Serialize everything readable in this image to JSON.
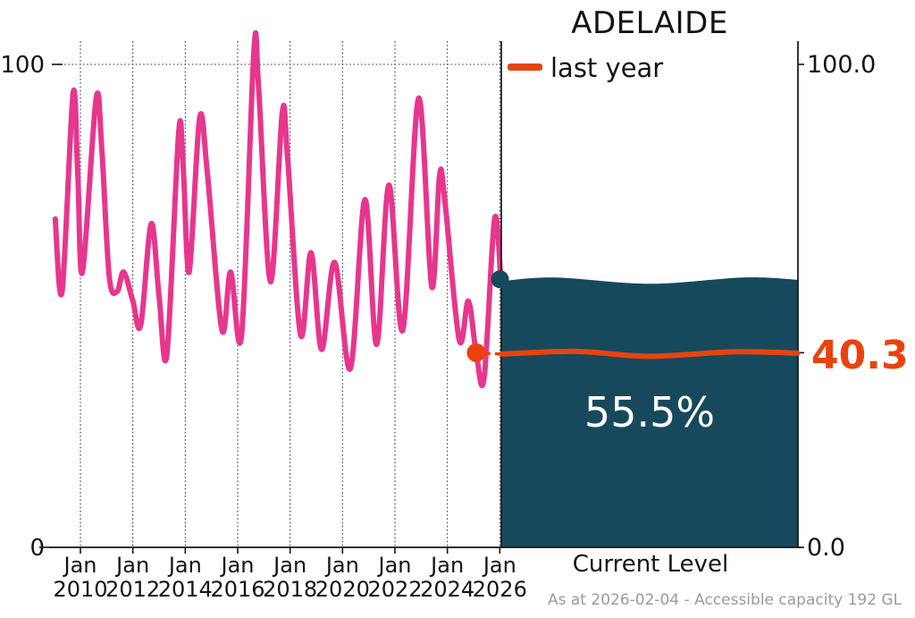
{
  "title": "ADELAIDE",
  "legend": {
    "label": "last year"
  },
  "colors": {
    "history_line": "#e7368d",
    "last_year": "#e8430e",
    "water": "#17495c",
    "axis": "#141414",
    "grid": "#3a3a3a",
    "percent_text": "#ffffff",
    "footer_text": "#9b9b9b"
  },
  "left_axis": {
    "tick_top": "100",
    "tick_bottom": "0"
  },
  "right_axis": {
    "tick_top": "100.0",
    "tick_bottom": "0.0"
  },
  "tank": {
    "percent_label": "55.5%",
    "last_year_label": "40.3",
    "xlabel": "Current Level"
  },
  "footer": "As at 2026-02-04 - Accessible capacity 192 GL",
  "chart_data": [
    {
      "type": "line",
      "name": "storage-history",
      "title": "ADELAIDE",
      "xlabel": "",
      "ylabel": "",
      "ylim": [
        0,
        100
      ],
      "xlim": [
        2008.85,
        2026.3
      ],
      "yticks": [
        0,
        100
      ],
      "grid": "dotted",
      "legend_position": "top-right-panel",
      "x_ticks": [
        {
          "month": "Jan",
          "year": "2010",
          "x": 2010
        },
        {
          "month": "Jan",
          "year": "2012",
          "x": 2012
        },
        {
          "month": "Jan",
          "year": "2014",
          "x": 2014
        },
        {
          "month": "Jan",
          "year": "2016",
          "x": 2016
        },
        {
          "month": "Jan",
          "year": "2018",
          "x": 2018
        },
        {
          "month": "Jan",
          "year": "2020",
          "x": 2020
        },
        {
          "month": "Jan",
          "year": "2022",
          "x": 2022
        },
        {
          "month": "Jan",
          "year": "2024",
          "x": 2024
        },
        {
          "month": "Jan",
          "year": "2026",
          "x": 2026
        }
      ],
      "series": [
        {
          "name": "storage percent history",
          "color": "#e7368d",
          "points": [
            [
              2009.04,
              68
            ],
            [
              2009.3,
              53
            ],
            [
              2009.72,
              94
            ],
            [
              2009.9,
              77
            ],
            [
              2010.08,
              57
            ],
            [
              2010.6,
              93
            ],
            [
              2010.82,
              82
            ],
            [
              2011.1,
              56
            ],
            [
              2011.4,
              53
            ],
            [
              2011.65,
              57
            ],
            [
              2012.0,
              51
            ],
            [
              2012.3,
              46
            ],
            [
              2012.7,
              67
            ],
            [
              2013.0,
              52
            ],
            [
              2013.3,
              40
            ],
            [
              2013.75,
              86
            ],
            [
              2013.92,
              79
            ],
            [
              2014.15,
              57
            ],
            [
              2014.55,
              89
            ],
            [
              2014.85,
              77
            ],
            [
              2015.4,
              45
            ],
            [
              2015.73,
              57
            ],
            [
              2016.15,
              44
            ],
            [
              2016.62,
              103
            ],
            [
              2016.8,
              95
            ],
            [
              2017.25,
              55
            ],
            [
              2017.7,
              90
            ],
            [
              2017.9,
              81
            ],
            [
              2018.4,
              44
            ],
            [
              2018.8,
              61
            ],
            [
              2019.2,
              41
            ],
            [
              2019.7,
              59
            ],
            [
              2020.3,
              37
            ],
            [
              2020.85,
              72
            ],
            [
              2021.3,
              42
            ],
            [
              2021.77,
              75
            ],
            [
              2022.3,
              45
            ],
            [
              2022.9,
              93
            ],
            [
              2023.4,
              54
            ],
            [
              2023.7,
              77
            ],
            [
              2023.9,
              72
            ],
            [
              2024.45,
              43
            ],
            [
              2024.8,
              51
            ],
            [
              2025.1,
              40.3
            ],
            [
              2025.4,
              35
            ],
            [
              2025.8,
              68
            ],
            [
              2026.08,
              55.5
            ]
          ]
        }
      ],
      "markers": [
        {
          "name": "last-year-dot",
          "x": 2025.1,
          "y": 40.3,
          "color": "#e8430e"
        },
        {
          "name": "current-level-dot",
          "x": 2026.08,
          "y": 55.5,
          "color": "#17495c"
        }
      ]
    },
    {
      "type": "area",
      "name": "current-level-tank",
      "categories": [
        "Current Level"
      ],
      "current_percent": 55.5,
      "last_year_percent": 40.3,
      "ylim": [
        0,
        100
      ],
      "unit": "%"
    }
  ]
}
